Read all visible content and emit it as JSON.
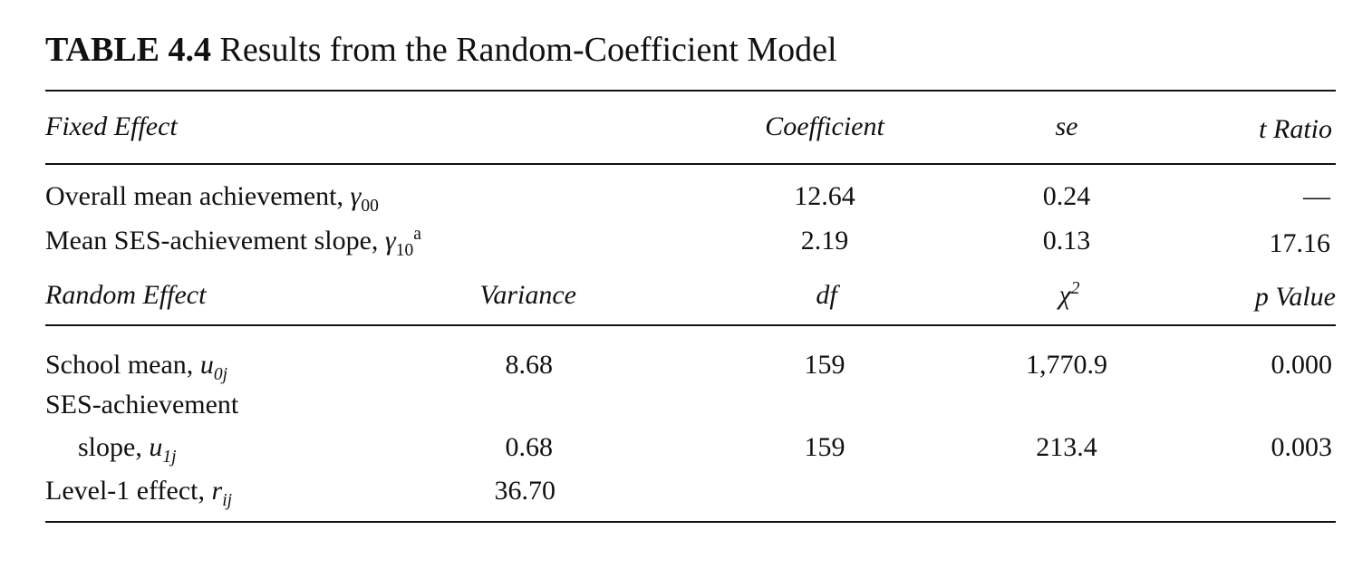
{
  "title": {
    "label": "TABLE 4.4",
    "text": "Results from the Random-Coefficient Model"
  },
  "fixed_header": {
    "effect": "Fixed Effect",
    "coefficient": "Coefficient",
    "se": "se",
    "t_ratio": "t Ratio"
  },
  "fixed_rows": [
    {
      "label": "Overall mean achievement, ",
      "symbol": "γ",
      "subscript": "00",
      "superscript": "",
      "coefficient": "12.64",
      "se": "0.24",
      "t_ratio": "—"
    },
    {
      "label": "Mean SES-achievement slope, ",
      "symbol": "γ",
      "subscript": "10",
      "superscript": "a",
      "coefficient": "2.19",
      "se": "0.13",
      "t_ratio": "17.16"
    }
  ],
  "random_header": {
    "effect": "Random Effect",
    "variance": "Variance",
    "df": "df",
    "chi2_symbol": "χ",
    "chi2_sup": "2",
    "p_value": "p Value"
  },
  "random_rows": [
    {
      "label": "School mean, ",
      "symbol": "u",
      "subscript": "0j",
      "variance": "8.68",
      "df": "159",
      "chi2": "1,770.9",
      "p_value": "0.000"
    },
    {
      "label_line1": "SES-achievement",
      "label": "slope, ",
      "symbol": "u",
      "subscript": "1j",
      "variance": "0.68",
      "df": "159",
      "chi2": "213.4",
      "p_value": "0.003"
    },
    {
      "label": "Level-1 effect, ",
      "symbol": "r",
      "subscript": "ij",
      "variance": "36.70",
      "df": "",
      "chi2": "",
      "p_value": ""
    }
  ]
}
